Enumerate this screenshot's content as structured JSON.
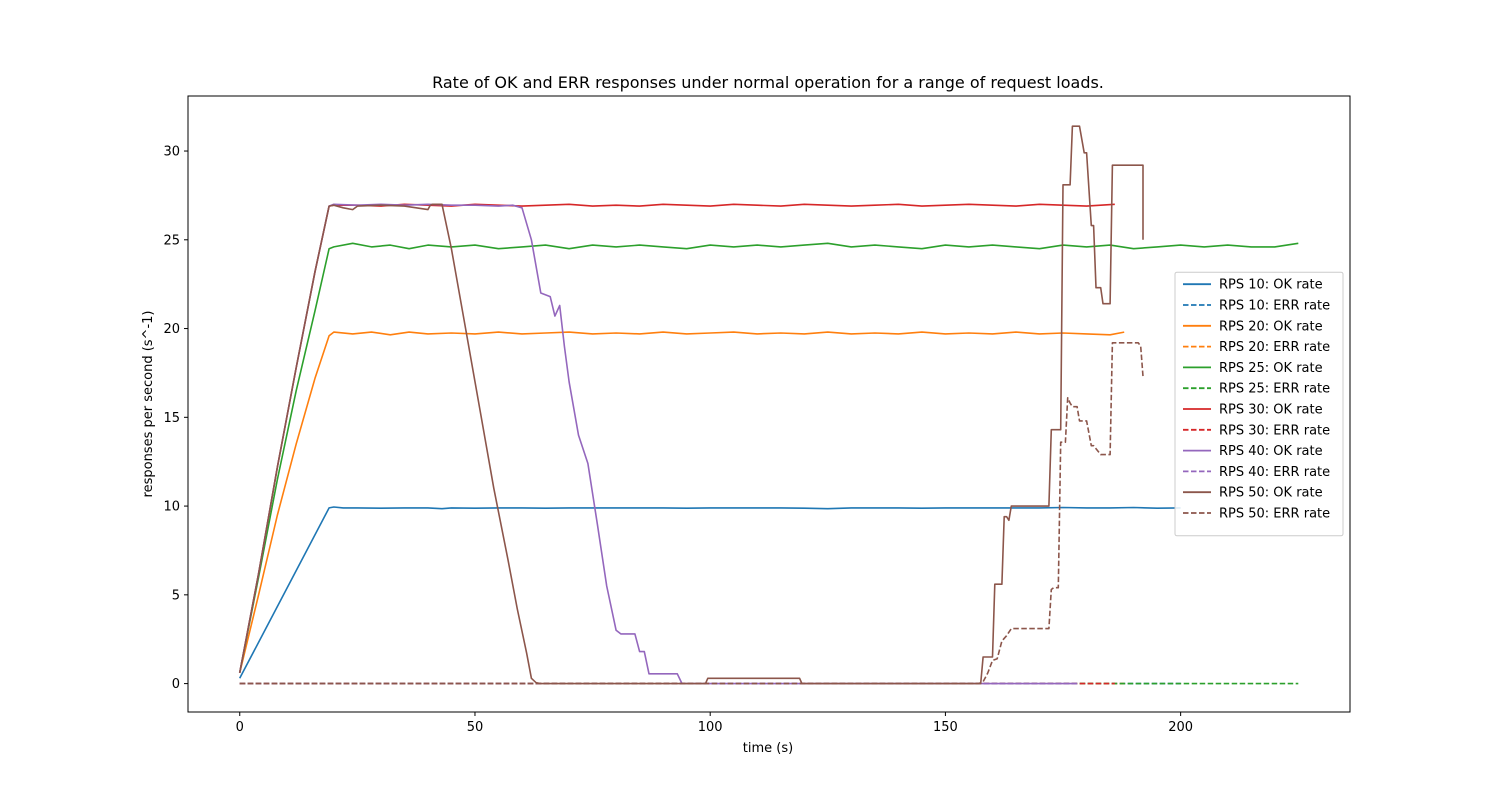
{
  "chart_data": {
    "type": "line",
    "title": "Rate of OK and ERR responses under normal operation for a range of request loads.",
    "xlabel": "time (s)",
    "ylabel": "responses per second (s^-1)",
    "xlim": [
      -11,
      236
    ],
    "ylim": [
      -1.6,
      33.1
    ],
    "xticks": [
      0,
      50,
      100,
      150,
      200
    ],
    "yticks": [
      0,
      5,
      10,
      15,
      20,
      25,
      30
    ],
    "grid": false,
    "legend_position": "center-right",
    "series": [
      {
        "name": "RPS 10: OK rate",
        "color": "#1f77b4",
        "dash": "solid",
        "x": [
          0,
          19,
          20,
          22,
          25,
          30,
          35,
          40,
          43,
          45,
          50,
          55,
          60,
          65,
          70,
          75,
          80,
          85,
          90,
          95,
          100,
          105,
          110,
          115,
          120,
          125,
          130,
          135,
          140,
          145,
          150,
          155,
          160,
          165,
          170,
          175,
          180,
          185,
          190,
          195,
          200
        ],
        "y": [
          0.3,
          9.9,
          9.95,
          9.9,
          9.9,
          9.88,
          9.9,
          9.9,
          9.85,
          9.9,
          9.88,
          9.9,
          9.9,
          9.88,
          9.9,
          9.9,
          9.9,
          9.9,
          9.9,
          9.88,
          9.9,
          9.9,
          9.9,
          9.9,
          9.88,
          9.85,
          9.9,
          9.9,
          9.9,
          9.88,
          9.9,
          9.9,
          9.9,
          9.9,
          9.9,
          9.92,
          9.9,
          9.9,
          9.92,
          9.88,
          9.9
        ]
      },
      {
        "name": "RPS 10: ERR rate",
        "color": "#1f77b4",
        "dash": "dashed",
        "x": [
          0,
          200
        ],
        "y": [
          0,
          0
        ]
      },
      {
        "name": "RPS 20: OK rate",
        "color": "#ff7f0e",
        "dash": "solid",
        "x": [
          0,
          4,
          8,
          12,
          16,
          19,
          20,
          24,
          28,
          32,
          36,
          40,
          45,
          50,
          55,
          60,
          65,
          70,
          75,
          80,
          85,
          90,
          95,
          100,
          105,
          110,
          115,
          120,
          125,
          130,
          135,
          140,
          145,
          150,
          155,
          160,
          165,
          170,
          175,
          180,
          185,
          188
        ],
        "y": [
          0.6,
          5,
          9.5,
          13.5,
          17.2,
          19.6,
          19.8,
          19.7,
          19.8,
          19.65,
          19.8,
          19.7,
          19.75,
          19.7,
          19.8,
          19.7,
          19.75,
          19.8,
          19.7,
          19.75,
          19.7,
          19.8,
          19.7,
          19.75,
          19.8,
          19.7,
          19.75,
          19.7,
          19.8,
          19.7,
          19.75,
          19.7,
          19.8,
          19.7,
          19.75,
          19.7,
          19.8,
          19.7,
          19.75,
          19.7,
          19.65,
          19.8
        ]
      },
      {
        "name": "RPS 20: ERR rate",
        "color": "#ff7f0e",
        "dash": "dashed",
        "x": [
          0,
          188
        ],
        "y": [
          0,
          0
        ]
      },
      {
        "name": "RPS 25: OK rate",
        "color": "#2ca02c",
        "dash": "solid",
        "x": [
          0,
          4,
          8,
          12,
          16,
          19,
          20,
          24,
          28,
          32,
          36,
          40,
          45,
          50,
          55,
          60,
          65,
          70,
          75,
          80,
          85,
          90,
          95,
          100,
          105,
          110,
          115,
          120,
          125,
          130,
          135,
          140,
          145,
          150,
          155,
          160,
          165,
          170,
          175,
          180,
          185,
          190,
          195,
          200,
          205,
          210,
          215,
          220,
          225
        ],
        "y": [
          0.6,
          6,
          11.5,
          16.5,
          21,
          24.5,
          24.6,
          24.8,
          24.6,
          24.7,
          24.5,
          24.7,
          24.6,
          24.7,
          24.5,
          24.6,
          24.7,
          24.5,
          24.7,
          24.6,
          24.7,
          24.6,
          24.5,
          24.7,
          24.6,
          24.7,
          24.6,
          24.7,
          24.8,
          24.6,
          24.7,
          24.6,
          24.5,
          24.7,
          24.6,
          24.7,
          24.6,
          24.5,
          24.7,
          24.6,
          24.7,
          24.5,
          24.6,
          24.7,
          24.6,
          24.7,
          24.6,
          24.6,
          24.8
        ]
      },
      {
        "name": "RPS 25: ERR rate",
        "color": "#2ca02c",
        "dash": "dashed",
        "x": [
          0,
          225
        ],
        "y": [
          0,
          0
        ]
      },
      {
        "name": "RPS 30: OK rate",
        "color": "#d62728",
        "dash": "solid",
        "x": [
          0,
          4,
          8,
          12,
          16,
          19,
          20,
          25,
          30,
          35,
          40,
          45,
          50,
          55,
          60,
          65,
          70,
          75,
          80,
          85,
          90,
          95,
          100,
          105,
          110,
          115,
          120,
          125,
          130,
          135,
          140,
          145,
          150,
          155,
          160,
          165,
          170,
          175,
          180,
          186
        ],
        "y": [
          0.6,
          6.2,
          12.2,
          17.8,
          23.2,
          26.9,
          26.95,
          26.95,
          26.9,
          27,
          26.95,
          26.9,
          27,
          26.95,
          26.9,
          26.95,
          27,
          26.9,
          26.95,
          26.9,
          27,
          26.95,
          26.9,
          27,
          26.95,
          26.9,
          27,
          26.95,
          26.9,
          26.95,
          27,
          26.9,
          26.95,
          27,
          26.95,
          26.9,
          27,
          26.95,
          26.9,
          27
        ]
      },
      {
        "name": "RPS 30: ERR rate",
        "color": "#d62728",
        "dash": "dashed",
        "x": [
          0,
          186
        ],
        "y": [
          0,
          0
        ]
      },
      {
        "name": "RPS 40: OK rate",
        "color": "#9467bd",
        "dash": "solid",
        "x": [
          0,
          4,
          8,
          12,
          16,
          19,
          20,
          25,
          30,
          35,
          40,
          45,
          50,
          55,
          58,
          60,
          62,
          64,
          66,
          67,
          68,
          69,
          70,
          72,
          74,
          76,
          78,
          80,
          81,
          84,
          85,
          86,
          87,
          88,
          93,
          94,
          95,
          100,
          120,
          150,
          178
        ],
        "y": [
          0.6,
          6.2,
          12.2,
          17.8,
          23.2,
          26.9,
          27,
          26.95,
          27,
          26.95,
          27,
          26.95,
          26.95,
          26.9,
          26.95,
          26.8,
          25,
          22,
          21.8,
          20.7,
          21.3,
          19,
          17,
          14,
          12.4,
          9,
          5.5,
          3,
          2.8,
          2.8,
          1.8,
          1.8,
          0.55,
          0.55,
          0.55,
          0,
          0,
          0,
          0,
          0,
          0
        ]
      },
      {
        "name": "RPS 40: ERR rate",
        "color": "#9467bd",
        "dash": "dashed",
        "x": [
          0,
          178
        ],
        "y": [
          0,
          0
        ]
      },
      {
        "name": "RPS 50: OK rate",
        "color": "#8c564b",
        "dash": "solid",
        "x": [
          0,
          4,
          8,
          12,
          16,
          19,
          20,
          22,
          24,
          25,
          30,
          35,
          40,
          40.5,
          41,
          42,
          43,
          45,
          48,
          51,
          54,
          57,
          59,
          61,
          62,
          63,
          64,
          65,
          70,
          80,
          90,
          99,
          99.5,
          115,
          119,
          119.5,
          130,
          150,
          157.5,
          158,
          160,
          160.5,
          162,
          162.5,
          163,
          163.5,
          164,
          172,
          172.5,
          174.5,
          175,
          176.5,
          177,
          178.5,
          179.5,
          180,
          181,
          181.5,
          182,
          183,
          183.5,
          185,
          185.5,
          192,
          192
        ],
        "y": [
          0.6,
          6.2,
          12.2,
          17.8,
          23.2,
          26.9,
          26.95,
          26.8,
          26.7,
          26.9,
          26.95,
          26.9,
          26.7,
          26.95,
          27,
          27,
          27,
          24.5,
          20,
          15.5,
          11,
          7,
          4.2,
          1.7,
          0.3,
          0.05,
          0,
          0,
          0,
          0,
          0,
          0,
          0.3,
          0.3,
          0.3,
          0,
          0,
          0,
          0,
          1.5,
          1.5,
          5.6,
          5.6,
          9.4,
          9.4,
          9.2,
          10,
          10,
          14.3,
          14.3,
          28.1,
          28.1,
          31.4,
          31.4,
          29.9,
          29.9,
          25.8,
          25.8,
          22.3,
          22.3,
          21.4,
          21.4,
          29.2,
          29.2,
          25
        ]
      },
      {
        "name": "RPS 50: ERR rate",
        "color": "#8c564b",
        "dash": "dashed",
        "x": [
          0,
          157,
          158,
          159,
          160,
          161,
          162,
          163,
          164,
          170,
          172,
          172.5,
          173,
          174,
          174.5,
          175,
          175.5,
          176,
          176.5,
          177,
          178,
          178.5,
          179,
          180,
          181,
          181.5,
          183,
          183.5,
          185,
          185.5,
          191,
          191.5,
          192
        ],
        "y": [
          0,
          0,
          0.1,
          0.6,
          1.3,
          1.4,
          2.4,
          2.7,
          3.1,
          3.1,
          3.1,
          5.3,
          5.4,
          5.4,
          13.6,
          13.6,
          13.6,
          16.1,
          15.8,
          15.6,
          15.6,
          14.8,
          14.8,
          14.8,
          13.4,
          13.4,
          12.9,
          12.9,
          12.9,
          19.2,
          19.2,
          19,
          17.3
        ]
      }
    ]
  }
}
